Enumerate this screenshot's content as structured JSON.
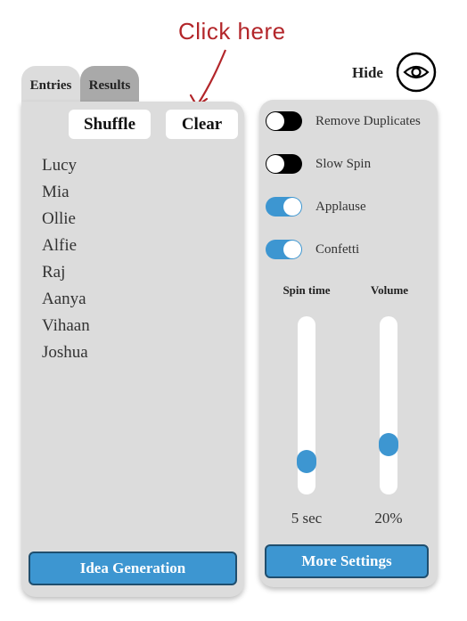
{
  "annotation": {
    "text": "Click here"
  },
  "tabs": [
    {
      "label": "Entries",
      "active": true
    },
    {
      "label": "Results",
      "active": false
    }
  ],
  "left_panel": {
    "shuffle_label": "Shuffle",
    "clear_label": "Clear",
    "entries": [
      "Lucy",
      "Mia",
      "Ollie",
      "Alfie",
      "Raj",
      "Aanya",
      "Vihaan",
      "Joshua"
    ],
    "idea_button": "Idea Generation"
  },
  "header": {
    "hide_label": "Hide",
    "eye_icon": "eye-icon"
  },
  "settings": {
    "toggles": [
      {
        "label": "Remove Duplicates",
        "on": false
      },
      {
        "label": "Slow Spin",
        "on": false
      },
      {
        "label": "Applause",
        "on": true
      },
      {
        "label": "Confetti",
        "on": true
      }
    ],
    "spin_time": {
      "label": "Spin time",
      "value": "5 sec",
      "level": 0.13
    },
    "volume": {
      "label": "Volume",
      "value": "20%",
      "level": 0.24
    },
    "more_button": "More Settings"
  },
  "colors": {
    "accent": "#3d96d1",
    "annotation": "#b3262a",
    "panel": "#dcdcdc"
  }
}
